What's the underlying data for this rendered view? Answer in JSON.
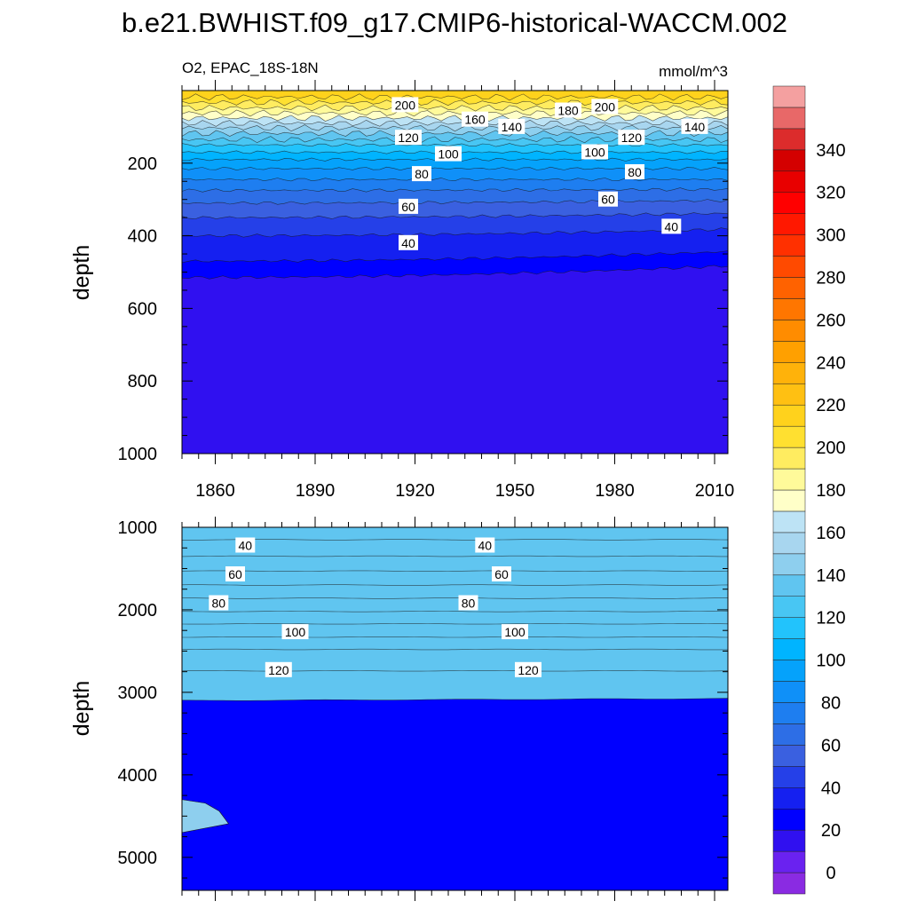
{
  "chart_data": [
    {
      "type": "contour",
      "title": "b.e21.BWHIST.f09_g17.CMIP6-historical-WACCM.002",
      "subtitle_left": "O2, EPAC_18S-18N",
      "subtitle_right": "mmol/m^3",
      "ylabel": "depth",
      "xlim": [
        1850,
        2014
      ],
      "ylim": [
        1000,
        0
      ],
      "x_ticks": [
        1860,
        1890,
        1920,
        1950,
        1980,
        2010
      ],
      "y_ticks": [
        200,
        400,
        600,
        800,
        1000
      ],
      "contour_levels": [
        20,
        30,
        40,
        50,
        60,
        70,
        80,
        90,
        100,
        110,
        120,
        130,
        140,
        150,
        160,
        170,
        180,
        190,
        200,
        210
      ],
      "contour_depth_profile": [
        {
          "level": 20,
          "depth": 515
        },
        {
          "level": 30,
          "depth": 470
        },
        {
          "level": 40,
          "depth": 400
        },
        {
          "level": 50,
          "depth": 350
        },
        {
          "level": 60,
          "depth": 310
        },
        {
          "level": 70,
          "depth": 275
        },
        {
          "level": 80,
          "depth": 245
        },
        {
          "level": 90,
          "depth": 215
        },
        {
          "level": 100,
          "depth": 190
        },
        {
          "level": 110,
          "depth": 170
        },
        {
          "level": 120,
          "depth": 150
        },
        {
          "level": 130,
          "depth": 135
        },
        {
          "level": 140,
          "depth": 118
        },
        {
          "level": 150,
          "depth": 103
        },
        {
          "level": 160,
          "depth": 90
        },
        {
          "level": 170,
          "depth": 76
        },
        {
          "level": 180,
          "depth": 62
        },
        {
          "level": 190,
          "depth": 48
        },
        {
          "level": 200,
          "depth": 33
        },
        {
          "level": 210,
          "depth": 18
        }
      ],
      "contour_labels": [
        {
          "text": "200",
          "x": 1917,
          "y": 40
        },
        {
          "text": "160",
          "x": 1938,
          "y": 80
        },
        {
          "text": "140",
          "x": 1949,
          "y": 100
        },
        {
          "text": "180",
          "x": 1966,
          "y": 55
        },
        {
          "text": "200",
          "x": 1977,
          "y": 45
        },
        {
          "text": "120",
          "x": 1918,
          "y": 130
        },
        {
          "text": "100",
          "x": 1930,
          "y": 175
        },
        {
          "text": "100",
          "x": 1974,
          "y": 170
        },
        {
          "text": "120",
          "x": 1985,
          "y": 130
        },
        {
          "text": "140",
          "x": 2004,
          "y": 100
        },
        {
          "text": "80",
          "x": 1922,
          "y": 230
        },
        {
          "text": "80",
          "x": 1986,
          "y": 225
        },
        {
          "text": "60",
          "x": 1918,
          "y": 320
        },
        {
          "text": "60",
          "x": 1978,
          "y": 300
        },
        {
          "text": "40",
          "x": 1918,
          "y": 420
        },
        {
          "text": "40",
          "x": 1997,
          "y": 375
        }
      ]
    },
    {
      "type": "contour",
      "ylabel": "depth",
      "xlim": [
        1850,
        2014
      ],
      "ylim": [
        5400,
        1000
      ],
      "y_ticks": [
        1000,
        2000,
        3000,
        4000,
        5000
      ],
      "contour_levels": [
        30,
        40,
        50,
        60,
        70,
        80,
        90,
        100,
        110,
        120,
        130,
        140
      ],
      "contour_depth_profile": [
        {
          "level": 30,
          "depth": 1150
        },
        {
          "level": 40,
          "depth": 1350
        },
        {
          "level": 50,
          "depth": 1530
        },
        {
          "level": 60,
          "depth": 1700
        },
        {
          "level": 70,
          "depth": 1860
        },
        {
          "level": 80,
          "depth": 2020
        },
        {
          "level": 90,
          "depth": 2170
        },
        {
          "level": 100,
          "depth": 2330
        },
        {
          "level": 110,
          "depth": 2480
        },
        {
          "level": 120,
          "depth": 2740
        },
        {
          "level": 130,
          "depth": 3100
        }
      ],
      "contour_labels": [
        {
          "text": "40",
          "x": 1869,
          "y": 1220
        },
        {
          "text": "40",
          "x": 1941,
          "y": 1220
        },
        {
          "text": "60",
          "x": 1866,
          "y": 1570
        },
        {
          "text": "60",
          "x": 1946,
          "y": 1570
        },
        {
          "text": "80",
          "x": 1861,
          "y": 1920
        },
        {
          "text": "80",
          "x": 1936,
          "y": 1920
        },
        {
          "text": "100",
          "x": 1884,
          "y": 2270
        },
        {
          "text": "100",
          "x": 1950,
          "y": 2270
        },
        {
          "text": "120",
          "x": 1879,
          "y": 2730
        },
        {
          "text": "120",
          "x": 1954,
          "y": 2730
        }
      ],
      "patch": {
        "value": 145,
        "x_start": 1850,
        "x_end": 1864,
        "depth_top": 4300,
        "depth_bottom": 4700
      }
    },
    {
      "type": "colorbar",
      "ticks": [
        0,
        20,
        40,
        60,
        80,
        100,
        120,
        140,
        160,
        180,
        200,
        220,
        240,
        260,
        280,
        300,
        320,
        340
      ],
      "bins": [
        -10,
        0,
        10,
        20,
        30,
        40,
        50,
        60,
        70,
        80,
        90,
        100,
        110,
        120,
        130,
        140,
        150,
        160,
        170,
        180,
        190,
        200,
        210,
        220,
        230,
        240,
        250,
        260,
        270,
        280,
        290,
        300,
        310,
        320,
        330,
        340,
        350,
        360
      ],
      "colors": [
        "#8a2be2",
        "#6a22f0",
        "#3010f0",
        "#0000ff",
        "#1520f0",
        "#2540e8",
        "#3a60e0",
        "#2d6ee6",
        "#1e7ef0",
        "#0f90f8",
        "#05a2fb",
        "#00b4ff",
        "#22c3fc",
        "#48c6f3",
        "#60c5f0",
        "#8ecfee",
        "#a8d6ef",
        "#bde3f5",
        "#ffffc8",
        "#fffa9a",
        "#ffec60",
        "#ffe030",
        "#ffd21c",
        "#ffc012",
        "#ffb20a",
        "#ffa000",
        "#ff8c00",
        "#ff7600",
        "#ff6200",
        "#ff4a00",
        "#ff3000",
        "#ff1800",
        "#ff0000",
        "#e80000",
        "#d40000",
        "#dc2c2c",
        "#e86868",
        "#f4a0a0"
      ]
    }
  ]
}
